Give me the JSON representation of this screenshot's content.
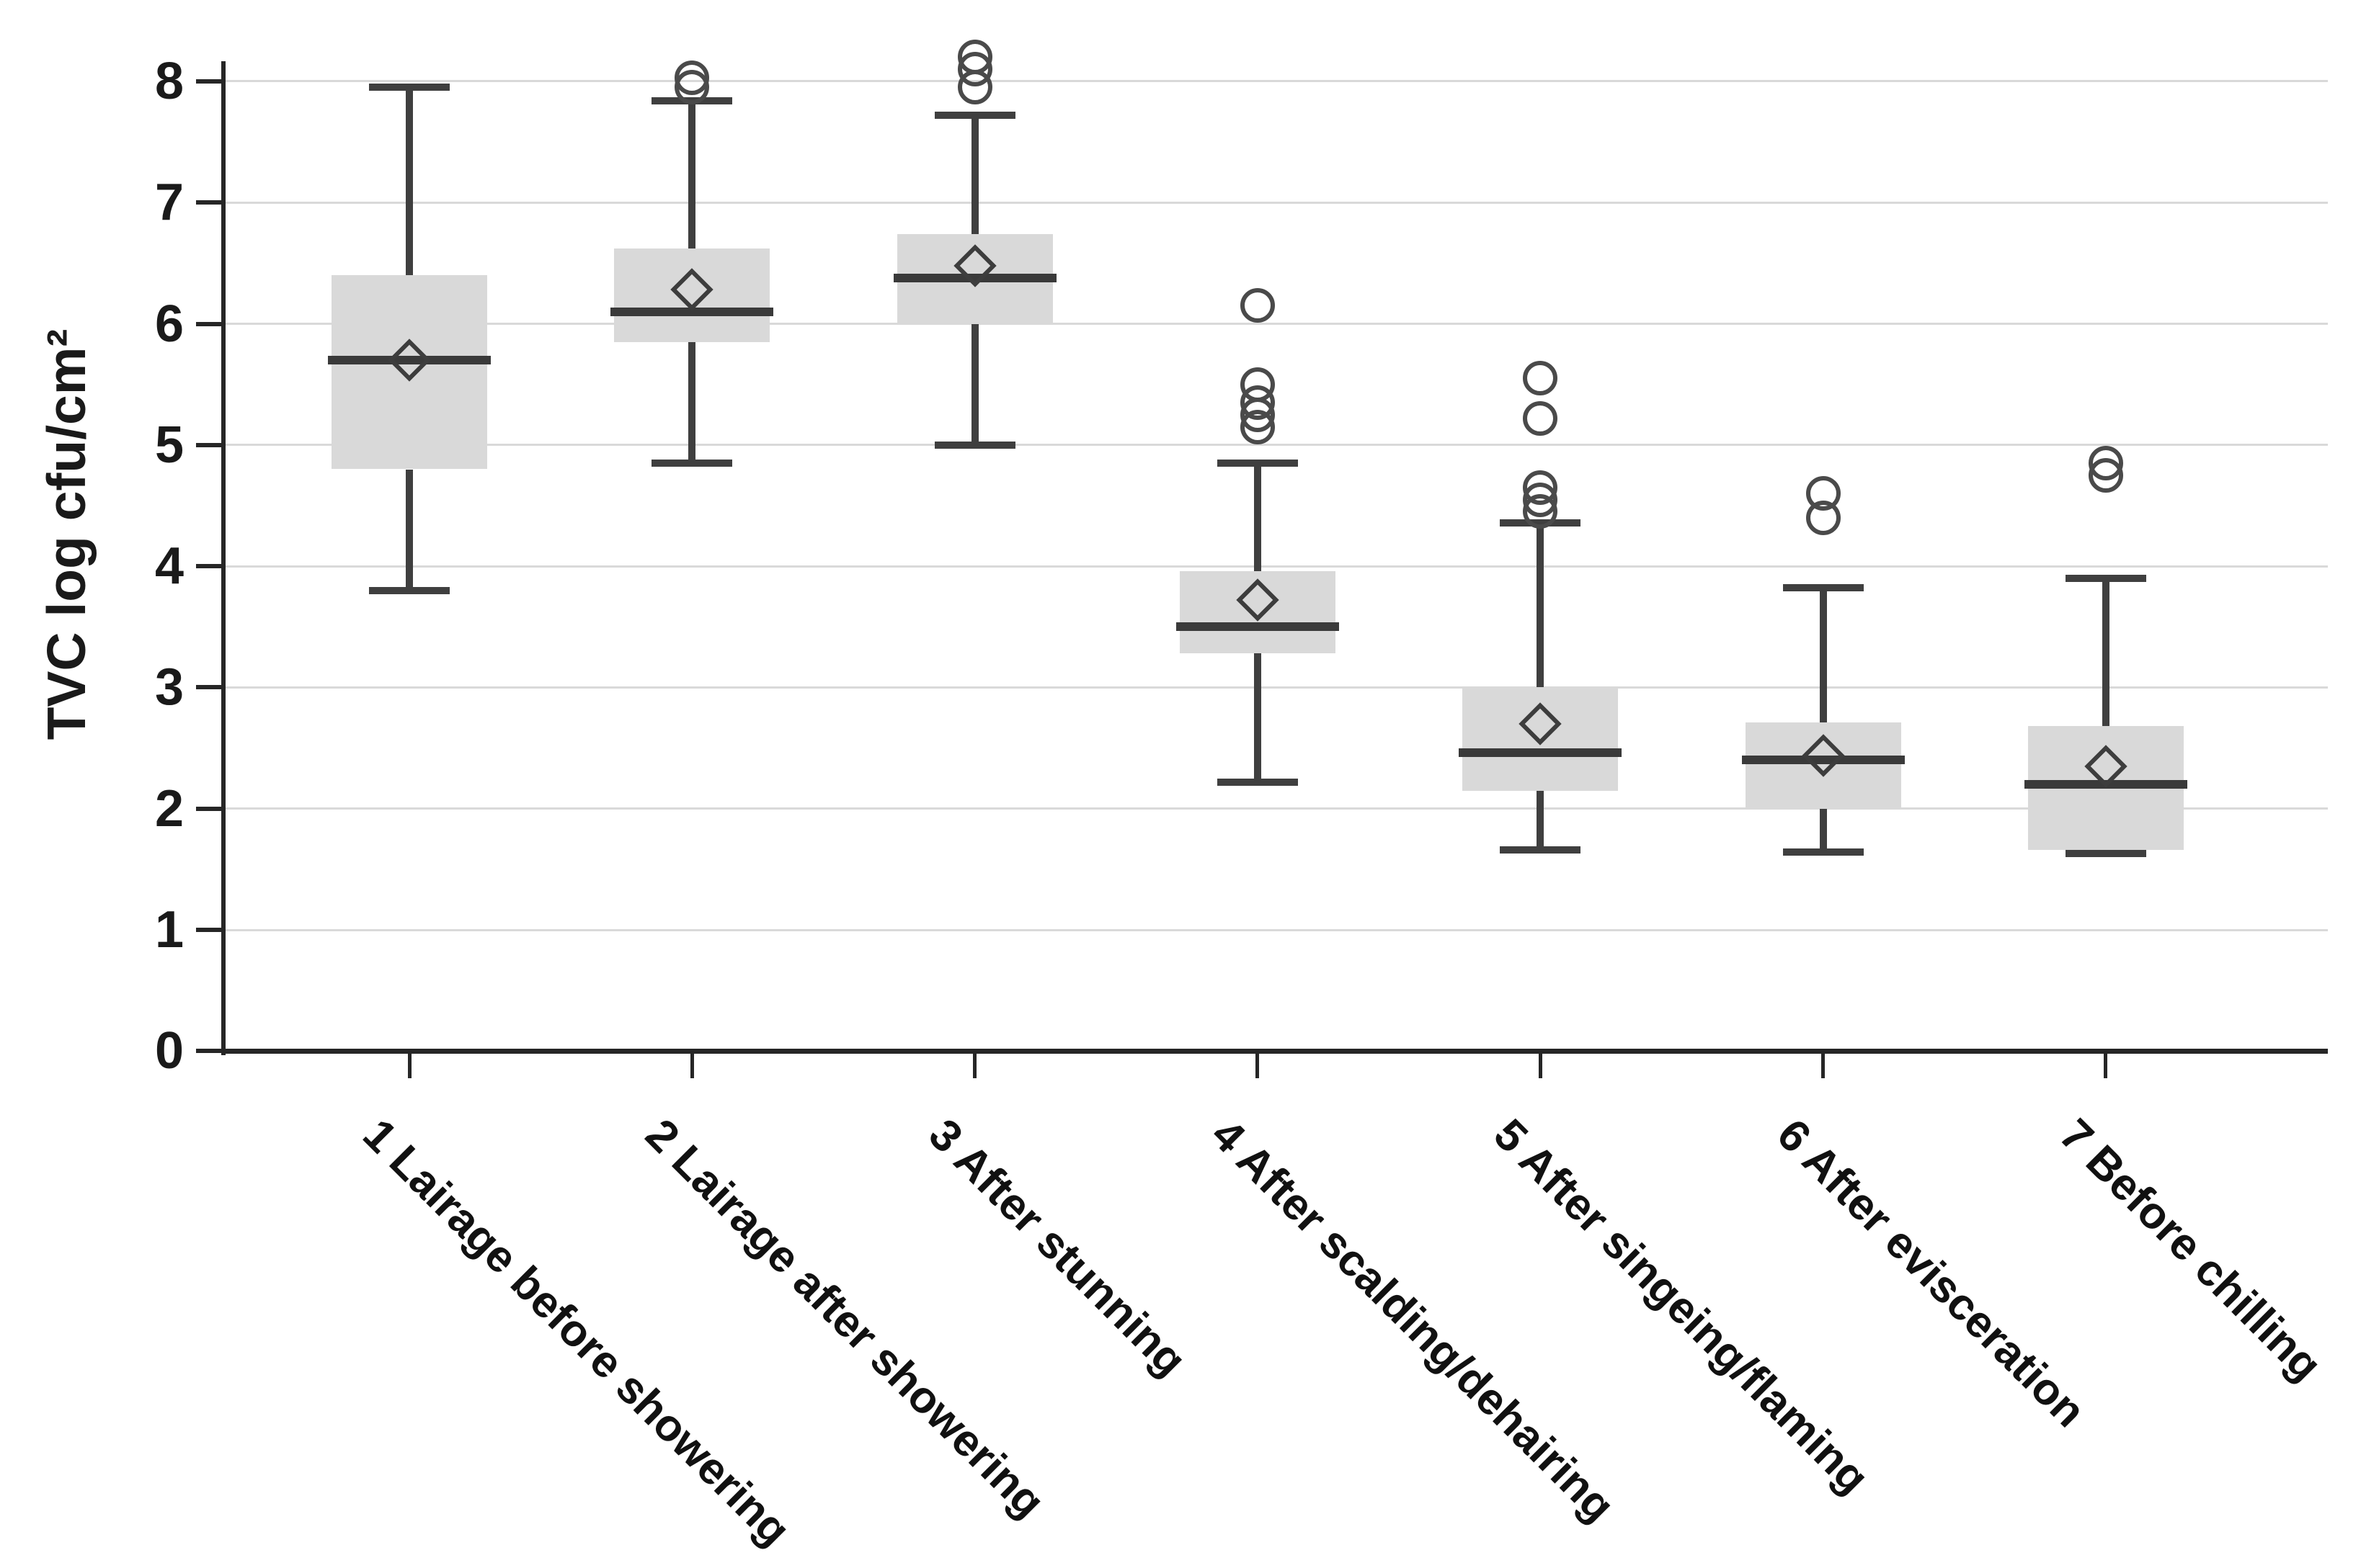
{
  "colors": {
    "box_fill": "#d9d9d9",
    "mark_line": "#3f3f3f",
    "median": "#3a3a3a",
    "axis": "#262626",
    "gridline": "#d9d9d9",
    "text": "#1a1a1a"
  },
  "chart_data": {
    "type": "boxplot",
    "title": "",
    "xlabel": "",
    "ylabel": "TVC log cfu/cm²",
    "ylim": [
      0,
      8
    ],
    "yticks": [
      "0",
      "1",
      "2",
      "3",
      "4",
      "5",
      "6",
      "7",
      "8"
    ],
    "grid": true,
    "legend": false,
    "categories": [
      "1 Lairage before showering",
      "2 Lairage after showering",
      "3 After stunning",
      "4 After scalding/dehairing",
      "5 After singeing/flaming",
      "6 After evisceration",
      "7 Before chilling"
    ],
    "boxes": [
      {
        "label": "1 Lairage before showering",
        "min": 3.8,
        "q1": 4.8,
        "median": 5.7,
        "mean": 5.7,
        "q3": 6.4,
        "max": 7.95,
        "outliers": []
      },
      {
        "label": "2 Lairage after showering",
        "min": 4.85,
        "q1": 5.85,
        "median": 6.1,
        "mean": 6.28,
        "q3": 6.62,
        "max": 7.84,
        "outliers": [
          7.95,
          8.03
        ]
      },
      {
        "label": "3 After stunning",
        "min": 5.0,
        "q1": 6.0,
        "median": 6.38,
        "mean": 6.48,
        "q3": 6.74,
        "max": 7.72,
        "outliers": [
          7.95,
          8.1,
          8.2
        ]
      },
      {
        "label": "4 After scalding/dehairing",
        "min": 2.22,
        "q1": 3.28,
        "median": 3.5,
        "mean": 3.72,
        "q3": 3.96,
        "max": 4.85,
        "outliers": [
          5.15,
          5.25,
          5.35,
          5.5,
          6.15
        ]
      },
      {
        "label": "5 After singeing/flaming",
        "min": 1.66,
        "q1": 2.15,
        "median": 2.46,
        "mean": 2.7,
        "q3": 3.0,
        "max": 4.36,
        "outliers": [
          4.45,
          4.55,
          4.65,
          5.22,
          5.55
        ]
      },
      {
        "label": "6 After evisceration",
        "min": 1.64,
        "q1": 2.0,
        "median": 2.4,
        "mean": 2.44,
        "q3": 2.71,
        "max": 3.82,
        "outliers": [
          4.4,
          4.6
        ]
      },
      {
        "label": "7 Before chilling",
        "min": 1.63,
        "q1": 1.66,
        "median": 2.2,
        "mean": 2.35,
        "q3": 2.68,
        "max": 3.9,
        "outliers": [
          4.75,
          4.85
        ]
      }
    ]
  }
}
